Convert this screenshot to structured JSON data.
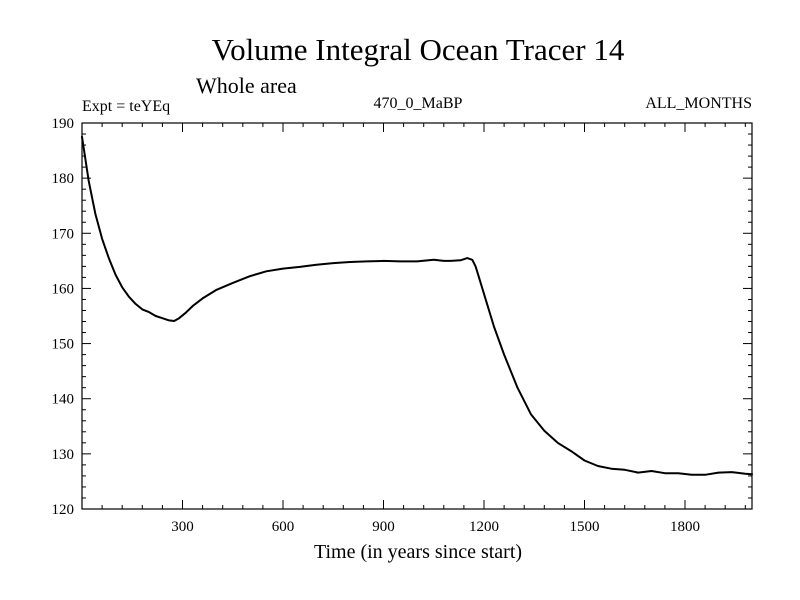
{
  "chart_data": {
    "type": "line",
    "title": "Volume Integral Ocean Tracer 14",
    "subtitle": "Whole area",
    "annotations": {
      "left": "Expt = teYEq",
      "center": "470_0_MaBP",
      "right": "ALL_MONTHS"
    },
    "xlabel": "Time (in years since start)",
    "ylabel": "",
    "xlim": [
      0,
      2000
    ],
    "ylim": [
      120,
      190
    ],
    "xticks": [
      300,
      600,
      900,
      1200,
      1500,
      1800
    ],
    "yticks": [
      120,
      130,
      140,
      150,
      160,
      170,
      180,
      190
    ],
    "grid": false,
    "series": [
      {
        "name": "Tracer 14",
        "color": "#000000",
        "x": [
          0,
          20,
          40,
          60,
          80,
          100,
          120,
          140,
          160,
          180,
          200,
          220,
          240,
          260,
          275,
          290,
          310,
          330,
          360,
          400,
          450,
          500,
          550,
          600,
          650,
          700,
          750,
          800,
          850,
          900,
          950,
          1000,
          1050,
          1080,
          1100,
          1130,
          1150,
          1165,
          1175,
          1185,
          1200,
          1230,
          1260,
          1300,
          1340,
          1380,
          1420,
          1460,
          1500,
          1540,
          1580,
          1620,
          1660,
          1700,
          1740,
          1780,
          1820,
          1860,
          1900,
          1940,
          1980,
          2000
        ],
        "y": [
          187.5,
          179.5,
          173.5,
          169,
          165.5,
          162.5,
          160.2,
          158.5,
          157.2,
          156.2,
          155.7,
          155,
          154.6,
          154.2,
          154.1,
          154.6,
          155.6,
          156.8,
          158.2,
          159.7,
          161,
          162.2,
          163.1,
          163.6,
          163.9,
          164.3,
          164.6,
          164.8,
          164.9,
          165,
          164.9,
          164.9,
          165.2,
          165,
          165,
          165.1,
          165.5,
          165.2,
          164,
          162,
          159,
          153,
          148,
          142,
          137.2,
          134.2,
          132,
          130.5,
          128.8,
          127.8,
          127.3,
          127.1,
          126.6,
          126.9,
          126.5,
          126.5,
          126.2,
          126.2,
          126.6,
          126.7,
          126.4,
          126.3
        ]
      }
    ]
  }
}
